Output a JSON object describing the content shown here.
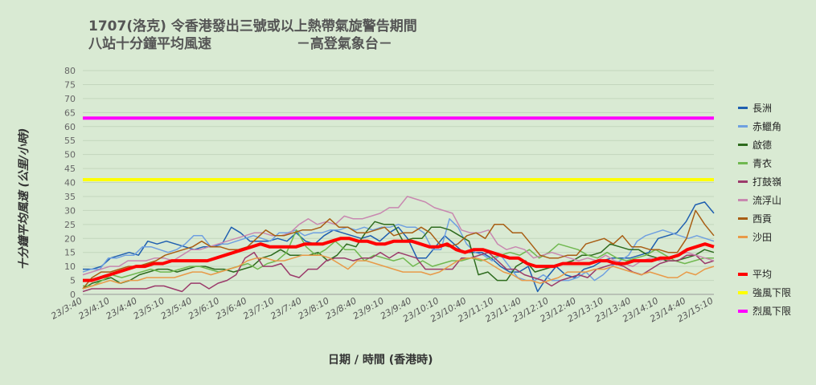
{
  "title": {
    "line1": "1707(洛克)  令香港發出三號或以上熱帶氣旋警告期間",
    "line2": "八站十分鐘平均風速",
    "line2b": "－高登氣象台－"
  },
  "chart_data": {
    "type": "line",
    "xlabel": "日期  /  時間 (香港時)",
    "ylabel": "十分鐘平均風速 (公里/小時)",
    "ylim": [
      0,
      80
    ],
    "yticks": [
      0,
      5,
      10,
      15,
      20,
      25,
      30,
      35,
      40,
      45,
      50,
      55,
      60,
      65,
      70,
      75,
      80
    ],
    "grid": true,
    "legend_position": "right",
    "xticklabels": [
      "23/3:40",
      "23/4:10",
      "23/4:40",
      "23/5:10",
      "23/5:40",
      "23/6:10",
      "23/6:40",
      "23/7:10",
      "23/7:40",
      "23/8:10",
      "23/8:40",
      "23/9:10",
      "23/9:40",
      "23/10:10",
      "23/10:40",
      "23/11:10",
      "23/11:40",
      "23/12:10",
      "23/12:40",
      "23/13:10",
      "23/13:40",
      "23/14:10",
      "23/14:40",
      "23/15:10"
    ],
    "series": [
      {
        "name": "長洲",
        "color": "#1f5fb0",
        "width": 1.5,
        "values": [
          9,
          9,
          10,
          13,
          14,
          15,
          14,
          19,
          18,
          19,
          18,
          17,
          16,
          17,
          17,
          18,
          24,
          22,
          19,
          19,
          19,
          20,
          19,
          22,
          19,
          18,
          21,
          23,
          22,
          21,
          20,
          21,
          19,
          22,
          24,
          20,
          13,
          13,
          17,
          21,
          18,
          15,
          15,
          15,
          13,
          10,
          8,
          8,
          10,
          1,
          6,
          10,
          7,
          6,
          9,
          10,
          12,
          13,
          13,
          13,
          14,
          15,
          20,
          21,
          22,
          26,
          32,
          33,
          29
        ]
      },
      {
        "name": "赤鱲角",
        "color": "#6fa0e0",
        "width": 1.5,
        "values": [
          8,
          9,
          9,
          13,
          13,
          14,
          14,
          17,
          17,
          16,
          15,
          16,
          18,
          21,
          21,
          17,
          18,
          18,
          19,
          20,
          21,
          20,
          19,
          22,
          22,
          23,
          21,
          22,
          22,
          23,
          23,
          24,
          23,
          24,
          23,
          24,
          24,
          25,
          24,
          24,
          22,
          16,
          16,
          27,
          24,
          18,
          15,
          14,
          12,
          14,
          10,
          6,
          5,
          5,
          7,
          5,
          5,
          5,
          6,
          8,
          5,
          7,
          10,
          12,
          14,
          19,
          21,
          22,
          23,
          22,
          21,
          20,
          21,
          20,
          19
        ]
      },
      {
        "name": "啟德",
        "color": "#2e6b1e",
        "width": 1.5,
        "values": [
          2,
          4,
          5,
          6,
          4,
          5,
          7,
          8,
          9,
          9,
          8,
          9,
          10,
          10,
          9,
          9,
          8,
          9,
          10,
          13,
          14,
          16,
          14,
          14,
          14,
          15,
          12,
          14,
          18,
          17,
          22,
          26,
          25,
          25,
          19,
          20,
          20,
          24,
          24,
          23,
          21,
          19,
          7,
          8,
          5,
          5,
          10,
          12,
          8,
          9,
          10,
          11,
          12,
          14,
          14,
          15,
          18,
          17,
          16,
          16,
          14,
          13,
          12,
          12,
          13,
          14,
          16,
          15
        ]
      },
      {
        "name": "青衣",
        "color": "#70b850",
        "width": 1.5,
        "values": [
          3,
          3,
          5,
          7,
          6,
          7,
          8,
          9,
          8,
          8,
          9,
          10,
          10,
          9,
          8,
          9,
          10,
          11,
          9,
          11,
          12,
          15,
          23,
          17,
          14,
          16,
          19,
          16,
          16,
          12,
          14,
          13,
          12,
          13,
          10,
          12,
          10,
          11,
          12,
          12,
          13,
          12,
          13,
          14,
          15,
          14,
          16,
          13,
          15,
          18,
          17,
          16,
          14,
          13,
          15,
          13,
          12,
          13,
          14,
          16,
          14,
          12,
          11,
          12,
          13,
          13
        ]
      },
      {
        "name": "打鼓嶺",
        "color": "#9b3b6b",
        "width": 1.5,
        "values": [
          1,
          2,
          2,
          2,
          2,
          2,
          2,
          2,
          3,
          3,
          2,
          1,
          4,
          4,
          2,
          4,
          5,
          7,
          13,
          15,
          10,
          10,
          11,
          7,
          6,
          9,
          9,
          12,
          13,
          13,
          12,
          13,
          13,
          15,
          13,
          15,
          14,
          13,
          9,
          9,
          9,
          9,
          13,
          13,
          14,
          15,
          12,
          9,
          9,
          7,
          6,
          5,
          3,
          5,
          6,
          7,
          6,
          9,
          10,
          11,
          10,
          8,
          7,
          9,
          11,
          12,
          12,
          14,
          14,
          11,
          12
        ]
      },
      {
        "name": "流浮山",
        "color": "#c888b0",
        "width": 1.5,
        "values": [
          7,
          8,
          9,
          10,
          10,
          12,
          12,
          12,
          13,
          13,
          12,
          14,
          16,
          16,
          17,
          18,
          19,
          20,
          21,
          22,
          22,
          21,
          21,
          22,
          25,
          27,
          25,
          26,
          25,
          28,
          27,
          27,
          28,
          29,
          31,
          31,
          35,
          34,
          33,
          31,
          30,
          29,
          23,
          22,
          22,
          23,
          18,
          16,
          17,
          16,
          13,
          14,
          15,
          14,
          13,
          12,
          13,
          12,
          14,
          12,
          11,
          10,
          12,
          13,
          12,
          13,
          14,
          15,
          14,
          13,
          12
        ]
      },
      {
        "name": "西貢",
        "color": "#a85e14",
        "width": 1.5,
        "values": [
          2,
          6,
          8,
          8,
          9,
          10,
          10,
          11,
          12,
          14,
          15,
          16,
          17,
          19,
          17,
          17,
          16,
          16,
          17,
          20,
          23,
          21,
          21,
          22,
          23,
          23,
          24,
          27,
          24,
          24,
          22,
          22,
          23,
          24,
          21,
          22,
          22,
          24,
          22,
          18,
          17,
          18,
          21,
          22,
          20,
          25,
          25,
          22,
          22,
          18,
          14,
          13,
          13,
          14,
          14,
          18,
          19,
          20,
          18,
          21,
          17,
          17,
          16,
          16,
          15,
          15,
          20,
          30,
          25,
          21
        ]
      },
      {
        "name": "沙田",
        "color": "#e89a48",
        "width": 1.5,
        "values": [
          2,
          3,
          4,
          5,
          4,
          5,
          5,
          6,
          6,
          6,
          6,
          7,
          8,
          8,
          7,
          8,
          9,
          10,
          12,
          13,
          13,
          12,
          12,
          13,
          14,
          14,
          14,
          13,
          11,
          9,
          12,
          12,
          11,
          10,
          9,
          8,
          8,
          8,
          7,
          8,
          10,
          12,
          13,
          13,
          12,
          10,
          8,
          7,
          5,
          5,
          4,
          5,
          6,
          8,
          8,
          8,
          9,
          9,
          10,
          9,
          8,
          7,
          8,
          7,
          6,
          6,
          8,
          7,
          9,
          10
        ]
      },
      {
        "name": "平均",
        "color": "#ff0000",
        "width": 4,
        "values": [
          5,
          5,
          6,
          7,
          8,
          9,
          10,
          10,
          11,
          11,
          12,
          12,
          12,
          12,
          12,
          13,
          14,
          15,
          16,
          17,
          18,
          17,
          17,
          17,
          17,
          18,
          18,
          18,
          19,
          20,
          20,
          19,
          19,
          18,
          18,
          19,
          19,
          19,
          18,
          17,
          17,
          18,
          16,
          15,
          16,
          16,
          15,
          14,
          13,
          13,
          11,
          10,
          10,
          10,
          11,
          11,
          11,
          11,
          12,
          12,
          11,
          11,
          12,
          12,
          12,
          13,
          13,
          14,
          16,
          17,
          18,
          17
        ]
      },
      {
        "name": "強風下限",
        "color": "#ffff00",
        "width": 4,
        "values": [
          41,
          41
        ]
      },
      {
        "name": "烈風下限",
        "color": "#ff00ff",
        "width": 4,
        "values": [
          63,
          63
        ]
      }
    ]
  }
}
